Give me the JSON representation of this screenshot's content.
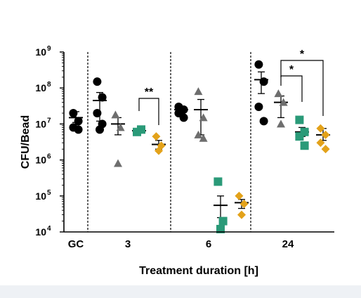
{
  "chart_data": {
    "type": "scatter",
    "title": "",
    "xlabel": "Treatment duration [h]",
    "ylabel": "CFU/Bead",
    "yscale": "log",
    "ylim": [
      10000,
      1000000000
    ],
    "y_ticks": [
      {
        "value": 10000,
        "base": "10",
        "exp": "4"
      },
      {
        "value": 100000,
        "base": "10",
        "exp": "5"
      },
      {
        "value": 1000000,
        "base": "10",
        "exp": "6"
      },
      {
        "value": 10000000,
        "base": "10",
        "exp": "7"
      },
      {
        "value": 100000000,
        "base": "10",
        "exp": "8"
      },
      {
        "value": 1000000000,
        "base": "10",
        "exp": "9"
      }
    ],
    "group_labels": [
      "GC",
      "3",
      "6",
      "24"
    ],
    "grid": false,
    "legend": "none",
    "series_style": [
      {
        "shape": "circle",
        "color": "#000000"
      },
      {
        "shape": "triangle",
        "color": "#6e6e6e"
      },
      {
        "shape": "square",
        "color": "#2a9a78"
      },
      {
        "shape": "diamond",
        "color": "#e3a21a"
      }
    ],
    "groups": [
      {
        "label": "GC",
        "columns": [
          {
            "style": 0,
            "points": [
              20000000,
              12000000,
              8000000,
              7000000
            ],
            "mean": 15000000,
            "err_low": 11000000,
            "err_high": 22000000
          },
          {
            "style": 0,
            "points": [
              150000000,
              55000000,
              20000000,
              10000000,
              7000000
            ],
            "mean": 45000000,
            "err_low": 12000000,
            "err_high": 75000000
          }
        ]
      },
      {
        "label": "3",
        "columns": [
          {
            "style": 1,
            "points": [
              18000000,
              8000000,
              800000
            ],
            "mean": 10000000,
            "err_low": 5000000,
            "err_high": 15000000
          },
          {
            "style": 2,
            "points": [
              6000000,
              7000000
            ],
            "mean": 6500000,
            "err_low": 6000000,
            "err_high": 7000000
          },
          {
            "style": 3,
            "points": [
              4500000,
              2500000,
              1800000
            ],
            "mean": 2700000,
            "err_low": 2000000,
            "err_high": 3500000
          }
        ]
      },
      {
        "label": "6",
        "columns": [
          {
            "style": 0,
            "points": [
              30000000,
              25000000,
              20000000,
              15000000
            ],
            "mean": 25000000,
            "err_low": 19000000,
            "err_high": 31000000
          },
          {
            "style": 1,
            "points": [
              80000000,
              15000000,
              5000000,
              4000000
            ],
            "mean": 25000000,
            "err_low": 5000000,
            "err_high": 48000000
          },
          {
            "style": 2,
            "points": [
              250000,
              20000,
              12000
            ],
            "mean": 55000,
            "err_low": 25000,
            "err_high": 100000
          },
          {
            "style": 3,
            "points": [
              100000,
              60000,
              30000
            ],
            "mean": 65000,
            "err_low": 45000,
            "err_high": 80000
          }
        ]
      },
      {
        "label": "24",
        "columns": [
          {
            "style": 0,
            "points": [
              450000000,
              150000000,
              30000000,
              12000000
            ],
            "mean": 170000000,
            "err_low": 70000000,
            "err_high": 280000000
          },
          {
            "style": 1,
            "points": [
              70000000,
              40000000,
              10000000
            ],
            "mean": 40000000,
            "err_low": 15000000,
            "err_high": 60000000
          },
          {
            "style": 2,
            "points": [
              13000000,
              6000000,
              4500000,
              2500000
            ],
            "mean": 6000000,
            "err_low": 4500000,
            "err_high": 8000000
          },
          {
            "style": 3,
            "points": [
              7500000,
              5000000,
              3000000,
              2000000
            ],
            "mean": 5000000,
            "err_low": 3500000,
            "err_high": 7500000
          }
        ]
      }
    ],
    "significance": [
      {
        "text": "**",
        "group": 1,
        "from_col": 1,
        "to_col": 2
      },
      {
        "text": "*",
        "group": 3,
        "from_col": 1,
        "to_col": 2
      },
      {
        "text": "*",
        "group": 3,
        "from_col": 1,
        "to_col": 3
      }
    ]
  }
}
